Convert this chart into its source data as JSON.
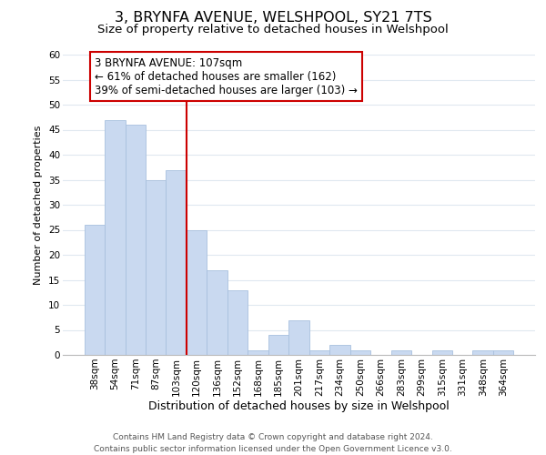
{
  "title": "3, BRYNFA AVENUE, WELSHPOOL, SY21 7TS",
  "subtitle": "Size of property relative to detached houses in Welshpool",
  "xlabel": "Distribution of detached houses by size in Welshpool",
  "ylabel": "Number of detached properties",
  "bar_labels": [
    "38sqm",
    "54sqm",
    "71sqm",
    "87sqm",
    "103sqm",
    "120sqm",
    "136sqm",
    "152sqm",
    "168sqm",
    "185sqm",
    "201sqm",
    "217sqm",
    "234sqm",
    "250sqm",
    "266sqm",
    "283sqm",
    "299sqm",
    "315sqm",
    "331sqm",
    "348sqm",
    "364sqm"
  ],
  "bar_values": [
    26,
    47,
    46,
    35,
    37,
    25,
    17,
    13,
    1,
    4,
    7,
    1,
    2,
    1,
    0,
    1,
    0,
    1,
    0,
    1,
    1
  ],
  "bar_color": "#c9d9f0",
  "bar_edge_color": "#a8c0de",
  "grid_color": "#e0e8f0",
  "vline_color": "#cc0000",
  "annotation_text": "3 BRYNFA AVENUE: 107sqm\n← 61% of detached houses are smaller (162)\n39% of semi-detached houses are larger (103) →",
  "annotation_box_edge": "#cc0000",
  "ylim": [
    0,
    60
  ],
  "yticks": [
    0,
    5,
    10,
    15,
    20,
    25,
    30,
    35,
    40,
    45,
    50,
    55,
    60
  ],
  "footer1": "Contains HM Land Registry data © Crown copyright and database right 2024.",
  "footer2": "Contains public sector information licensed under the Open Government Licence v3.0.",
  "title_fontsize": 11.5,
  "subtitle_fontsize": 9.5,
  "xlabel_fontsize": 9,
  "ylabel_fontsize": 8,
  "tick_fontsize": 7.5,
  "annotation_fontsize": 8.5,
  "footer_fontsize": 6.5
}
